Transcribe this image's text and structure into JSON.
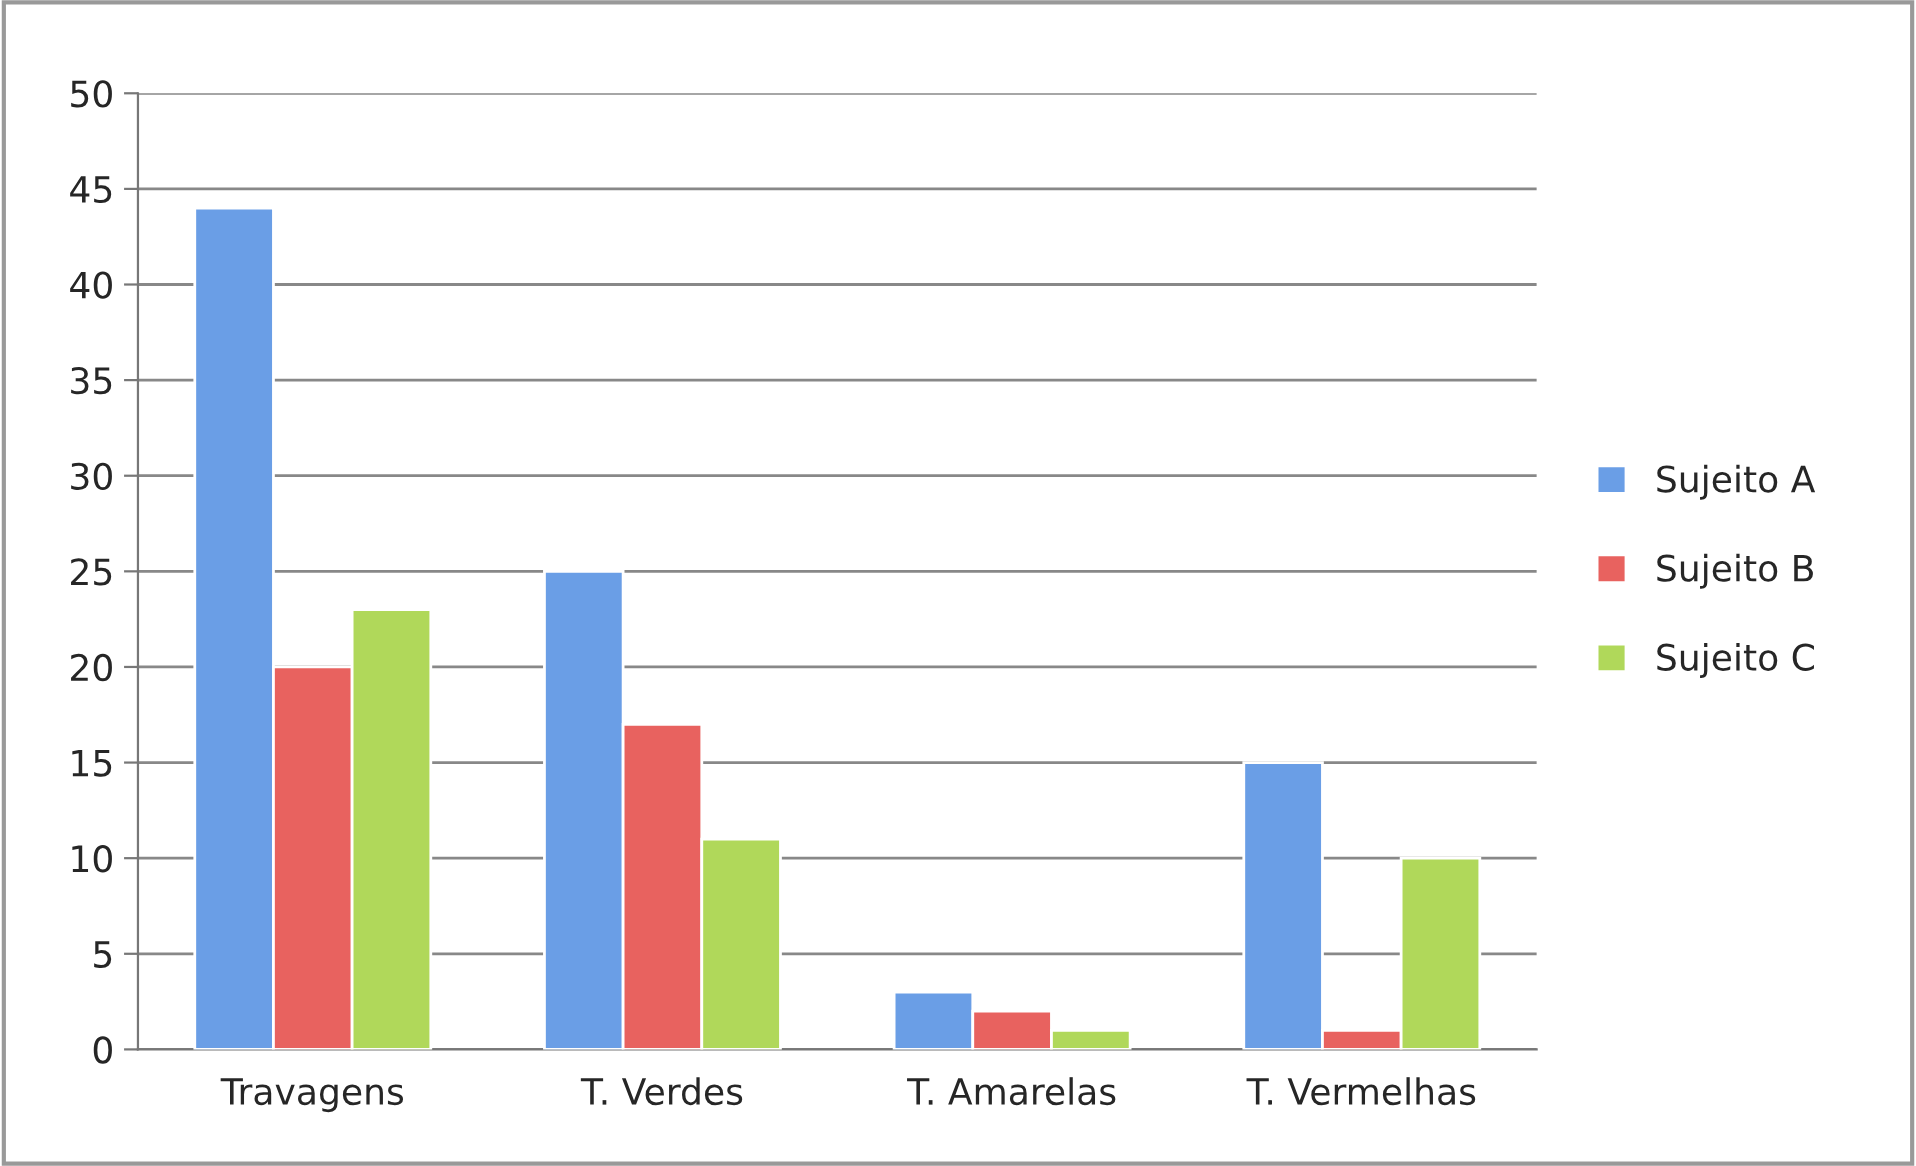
{
  "chart_data": {
    "type": "bar",
    "categories": [
      "Travagens",
      "T. Verdes",
      "T. Amarelas",
      "T. Vermelhas"
    ],
    "series": [
      {
        "name": "Sujeito A",
        "color": "#6a9ee6",
        "values": [
          44,
          25,
          3,
          15
        ]
      },
      {
        "name": "Sujeito B",
        "color": "#e8625f",
        "values": [
          20,
          17,
          2,
          1
        ]
      },
      {
        "name": "Sujeito C",
        "color": "#b0d85a",
        "values": [
          23,
          11,
          1,
          10
        ]
      }
    ],
    "ylim": [
      0,
      50
    ],
    "yticks": [
      0,
      5,
      10,
      15,
      20,
      25,
      30,
      35,
      40,
      45,
      50
    ],
    "grid": "y",
    "legend": "right"
  }
}
